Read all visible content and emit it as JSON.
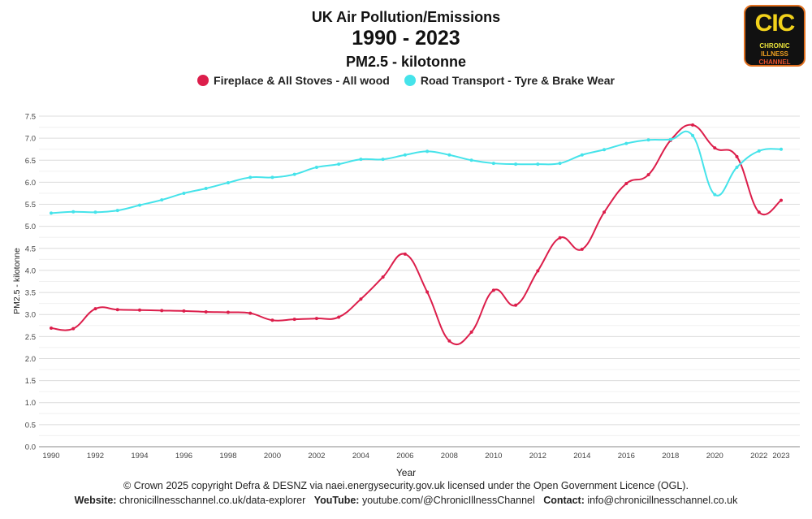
{
  "title": "UK Air Pollution/Emissions",
  "subtitle": "1990 - 2023",
  "subtitle2": "PM2.5 - kilotonne",
  "logo": {
    "text": "CIC",
    "line1": "CHRONIC",
    "line2": "ILLNESS",
    "line3": "CHANNEL"
  },
  "footer": {
    "copyright": "© Crown 2025 copyright Defra & DESNZ via naei.energysecurity.gov.uk licensed under the Open Government Licence (OGL).",
    "website_label": "Website:",
    "website": "chronicillnesschannel.co.uk/data-explorer",
    "youtube_label": "YouTube:",
    "youtube": "youtube.com/@ChronicIllnessChannel",
    "contact_label": "Contact:",
    "contact": "info@chronicillnesschannel.co.uk"
  },
  "chart_data": {
    "type": "line",
    "title": "UK Air Pollution/Emissions 1990 - 2023 PM2.5 - kilotonne",
    "xlabel": "Year",
    "ylabel": "PM2.5 - kilotonne",
    "ylim": [
      0,
      7.5
    ],
    "yticks": [
      "0.0",
      "0.5",
      "1.0",
      "1.5",
      "2.0",
      "2.5",
      "3.0",
      "3.5",
      "4.0",
      "4.5",
      "5.0",
      "5.5",
      "6.0",
      "6.5",
      "7.0",
      "7.5"
    ],
    "xticks": [
      "1990",
      "1992",
      "1994",
      "1996",
      "1998",
      "2000",
      "2002",
      "2004",
      "2006",
      "2008",
      "2010",
      "2012",
      "2014",
      "2016",
      "2018",
      "2020",
      "2022",
      "2023"
    ],
    "grid": true,
    "legend": "top",
    "x": [
      1990,
      1991,
      1992,
      1993,
      1994,
      1995,
      1996,
      1997,
      1998,
      1999,
      2000,
      2001,
      2002,
      2003,
      2004,
      2005,
      2006,
      2007,
      2008,
      2009,
      2010,
      2011,
      2012,
      2013,
      2014,
      2015,
      2016,
      2017,
      2018,
      2019,
      2020,
      2021,
      2022,
      2023
    ],
    "series": [
      {
        "name": "Fireplace & All Stoves - All wood",
        "color": "#dc1e4b",
        "values": [
          2.69,
          2.68,
          3.13,
          3.11,
          3.1,
          3.09,
          3.08,
          3.06,
          3.05,
          3.03,
          2.87,
          2.89,
          2.91,
          2.94,
          3.35,
          3.85,
          4.37,
          3.51,
          2.4,
          2.6,
          3.55,
          3.21,
          3.99,
          4.74,
          4.48,
          5.32,
          5.97,
          6.17,
          6.95,
          7.3,
          6.78,
          6.58,
          5.32,
          5.59
        ]
      },
      {
        "name": "Road Transport - Tyre & Brake Wear",
        "color": "#45e3ea",
        "values": [
          5.3,
          5.33,
          5.32,
          5.36,
          5.48,
          5.6,
          5.75,
          5.86,
          5.99,
          6.11,
          6.11,
          6.18,
          6.34,
          6.41,
          6.52,
          6.52,
          6.62,
          6.7,
          6.62,
          6.5,
          6.43,
          6.41,
          6.41,
          6.43,
          6.62,
          6.74,
          6.88,
          6.96,
          6.97,
          7.06,
          5.72,
          6.34,
          6.71,
          6.75
        ]
      }
    ]
  }
}
